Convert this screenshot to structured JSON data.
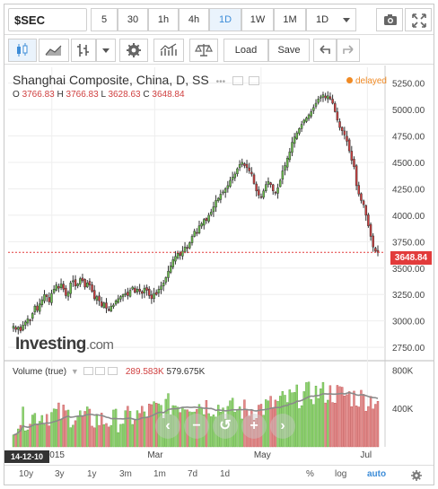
{
  "toolbar": {
    "symbol": "$SEC",
    "intervals": [
      "5",
      "30",
      "1h",
      "4h",
      "1D",
      "1W",
      "1M"
    ],
    "active_interval": "1D",
    "interval_select": "1D",
    "load_label": "Load",
    "save_label": "Save"
  },
  "legend": {
    "title": "Shanghai Composite, China, D, SS",
    "o_label": "O",
    "o_value": "3766.83",
    "h_label": "H",
    "h_value": "3766.83",
    "l_label": "L",
    "l_value": "3628.63",
    "c_label": "C",
    "c_value": "3648.84",
    "delayed": "delayed",
    "last_price": "3648.84"
  },
  "volume_legend": {
    "label": "Volume (true)",
    "value1": "289.583K",
    "value2": "579.675K"
  },
  "branding": {
    "logo": "Investing",
    "logo_suffix": ".com"
  },
  "crosshair_date": "14-12-10",
  "bottom_bar": {
    "ranges": [
      "10y",
      "3y",
      "1y",
      "3m",
      "1m",
      "7d",
      "1d"
    ],
    "percent": "%",
    "log": "log",
    "auto": "auto"
  },
  "colors": {
    "up": "#6abf4b",
    "down": "#d04040",
    "ma": "#8a8a8a",
    "last_line": "#e23b3b"
  },
  "chart_data": {
    "type": "candlestick",
    "title": "Shanghai Composite, China, D, SS",
    "price_axis": {
      "ticks": [
        2750,
        3000,
        3250,
        3500,
        3750,
        4000,
        4250,
        4500,
        4750,
        5000,
        5250
      ],
      "ylim": [
        2700,
        5400
      ]
    },
    "x_ticks": [
      {
        "label": "2015",
        "date": "2015-01-01"
      },
      {
        "label": "Mar",
        "date": "2015-03-01"
      },
      {
        "label": "May",
        "date": "2015-05-01"
      },
      {
        "label": "Jul",
        "date": "2015-07-01"
      }
    ],
    "date_range": [
      "2014-12-10",
      "2015-07-07"
    ],
    "closes": [
      2950,
      2920,
      2940,
      2905,
      2960,
      2990,
      3020,
      3010,
      3070,
      3140,
      3100,
      3160,
      3200,
      3250,
      3230,
      3180,
      3260,
      3300,
      3340,
      3310,
      3350,
      3300,
      3240,
      3270,
      3360,
      3380,
      3330,
      3350,
      3400,
      3380,
      3320,
      3360,
      3340,
      3280,
      3210,
      3230,
      3190,
      3140,
      3170,
      3120,
      3100,
      3140,
      3150,
      3190,
      3210,
      3230,
      3250,
      3260,
      3240,
      3290,
      3320,
      3270,
      3300,
      3280,
      3260,
      3310,
      3290,
      3240,
      3210,
      3260,
      3250,
      3300,
      3330,
      3360,
      3410,
      3470,
      3520,
      3580,
      3610,
      3640,
      3620,
      3660,
      3700,
      3690,
      3740,
      3800,
      3850,
      3830,
      3900,
      3920,
      3960,
      3950,
      4000,
      4030,
      4080,
      4140,
      4160,
      4200,
      4220,
      4250,
      4280,
      4330,
      4360,
      4390,
      4440,
      4480,
      4500,
      4470,
      4450,
      4420,
      4390,
      4300,
      4230,
      4190,
      4170,
      4230,
      4290,
      4320,
      4290,
      4230,
      4210,
      4260,
      4330,
      4420,
      4470,
      4540,
      4600,
      4690,
      4740,
      4780,
      4820,
      4860,
      4900,
      4920,
      4950,
      4980,
      5020,
      5060,
      5100,
      5120,
      5140,
      5110,
      5130,
      5100,
      5060,
      4980,
      4900,
      4830,
      4800,
      4760,
      4700,
      4610,
      4520,
      4460,
      4280,
      4200,
      4140,
      4100,
      4000,
      3900,
      3800,
      3700,
      3660,
      3648.84
    ],
    "volume": {
      "label": "Volume (true)",
      "ticks": [
        "400K",
        "800K"
      ],
      "ylim": [
        0,
        850
      ]
    }
  }
}
